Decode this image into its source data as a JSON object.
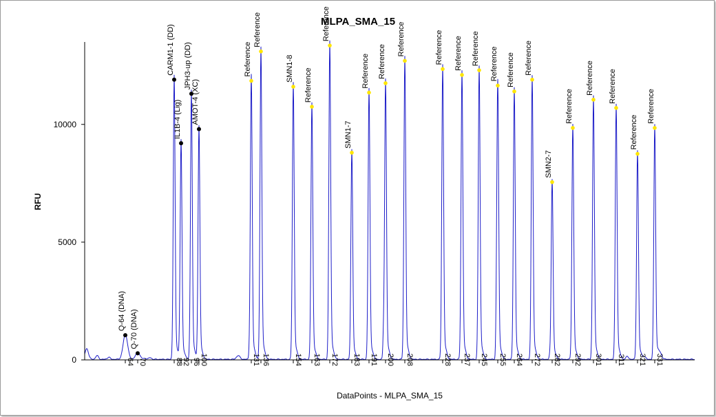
{
  "chart_data": {
    "type": "line",
    "title": "MLPA_SMA_15",
    "xlabel": "DataPoints - MLPA_SMA_15",
    "ylabel": "RFU",
    "ylim": [
      0,
      13500
    ],
    "yticks": [
      0,
      5000,
      10000
    ],
    "grid": false,
    "colors": {
      "trace": "#1c1cc8",
      "reference_marker": "#ffe600",
      "probe_marker": "#000000",
      "axis": "#000000"
    },
    "xticks": [
      "64",
      "70",
      "88",
      "92",
      "96",
      "100",
      "131",
      "136",
      "154",
      "163",
      "172",
      "183",
      "191",
      "200",
      "208",
      "228",
      "237",
      "245",
      "255",
      "264",
      "272",
      "282",
      "292",
      "301",
      "311",
      "321",
      "331"
    ],
    "peaks": [
      {
        "x": "64",
        "label": "Q-64 (DNA)",
        "rfu": 1050,
        "kind": "probe"
      },
      {
        "x": "70",
        "label": "Q-70 (DNA)",
        "rfu": 280,
        "kind": "probe"
      },
      {
        "x": "88",
        "label": "CARM1-1 (DD)",
        "rfu": 11900,
        "kind": "probe"
      },
      {
        "x": "92",
        "label": "IL1B-4 (Lig)",
        "rfu": 9200,
        "kind": "probe"
      },
      {
        "x": "96",
        "label": "JPH3-up (DD)",
        "rfu": 11300,
        "kind": "probe"
      },
      {
        "x": "100",
        "label": "AMOT-4 (XC)",
        "rfu": 9800,
        "kind": "probe"
      },
      {
        "x": "131",
        "label": "Reference",
        "rfu": 11850,
        "kind": "reference"
      },
      {
        "x": "136",
        "label": "Reference",
        "rfu": 13100,
        "kind": "reference"
      },
      {
        "x": "154",
        "label": "SMN1-8",
        "rfu": 11600,
        "kind": "reference"
      },
      {
        "x": "163",
        "label": "Reference",
        "rfu": 10750,
        "kind": "reference"
      },
      {
        "x": "172",
        "label": "Reference",
        "rfu": 13350,
        "kind": "reference"
      },
      {
        "x": "183",
        "label": "SMN1-7",
        "rfu": 8800,
        "kind": "reference"
      },
      {
        "x": "191",
        "label": "Reference",
        "rfu": 11350,
        "kind": "reference"
      },
      {
        "x": "200",
        "label": "Reference",
        "rfu": 11750,
        "kind": "reference"
      },
      {
        "x": "208",
        "label": "Reference",
        "rfu": 12700,
        "kind": "reference"
      },
      {
        "x": "228",
        "label": "Reference",
        "rfu": 12350,
        "kind": "reference"
      },
      {
        "x": "237",
        "label": "Reference",
        "rfu": 12100,
        "kind": "reference"
      },
      {
        "x": "245",
        "label": "Reference",
        "rfu": 12300,
        "kind": "reference"
      },
      {
        "x": "255",
        "label": "Reference",
        "rfu": 11650,
        "kind": "reference"
      },
      {
        "x": "264",
        "label": "Reference",
        "rfu": 11400,
        "kind": "reference"
      },
      {
        "x": "272",
        "label": "Reference",
        "rfu": 11900,
        "kind": "reference"
      },
      {
        "x": "282",
        "label": "SMN2-7",
        "rfu": 7550,
        "kind": "reference"
      },
      {
        "x": "292",
        "label": "Reference",
        "rfu": 9850,
        "kind": "reference"
      },
      {
        "x": "301",
        "label": "Reference",
        "rfu": 11050,
        "kind": "reference"
      },
      {
        "x": "311",
        "label": "Reference",
        "rfu": 10700,
        "kind": "reference"
      },
      {
        "x": "321",
        "label": "Reference",
        "rfu": 8750,
        "kind": "reference"
      },
      {
        "x": "331",
        "label": "Reference",
        "rfu": 9850,
        "kind": "reference"
      }
    ]
  }
}
